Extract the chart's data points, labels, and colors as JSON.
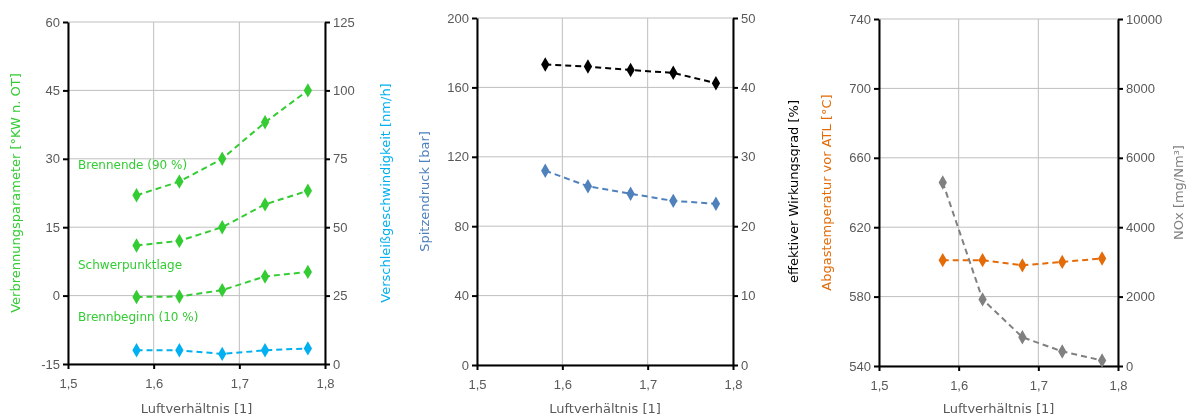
{
  "chart_data": [
    {
      "type": "line",
      "xlabel": "Luftverhältnis [1]",
      "ylabel": "Verbrennungsparameter [°KW n. OT]",
      "y2label": "Verschleißgeschwindigkeit [nm/h]",
      "x": [
        1.58,
        1.63,
        1.68,
        1.73,
        1.78
      ],
      "xlim": [
        1.5,
        1.8
      ],
      "xticks": [
        {
          "value": 1.5,
          "label": "1,5"
        },
        {
          "value": 1.6,
          "label": "1,6"
        },
        {
          "value": 1.7,
          "label": "1,7"
        },
        {
          "value": 1.8,
          "label": "1,8"
        }
      ],
      "ylim": [
        -15,
        60
      ],
      "yticks": [
        -15,
        0,
        15,
        30,
        45,
        60
      ],
      "y2lim": [
        0,
        125
      ],
      "y2ticks": [
        0,
        25,
        50,
        75,
        100,
        125
      ],
      "grid": true,
      "marker": "diamond",
      "line_style": "dashed",
      "series": [
        {
          "name": "Brennende (90 %)",
          "color": "#33cc33",
          "values": [
            22,
            25,
            30,
            38,
            45
          ]
        },
        {
          "name": "Schwerpunktlage",
          "color": "#33cc33",
          "values": [
            11,
            12,
            15,
            20,
            23
          ]
        },
        {
          "name": "Brennbeginn (10 %)",
          "color": "#33cc33",
          "values": [
            -0.3,
            -0.2,
            1.2,
            4.2,
            5.2
          ]
        },
        {
          "color": "#00b0f0",
          "axis": "y2",
          "values": [
            5,
            5,
            3.7,
            5,
            5.7
          ]
        }
      ]
    },
    {
      "type": "line",
      "xlabel": "Luftverhältnis [1]",
      "ylabel": "Spitzendruck [bar]",
      "y2label": "effektiver Wirkungsgrad [%]",
      "x": [
        1.58,
        1.63,
        1.68,
        1.73,
        1.78
      ],
      "xlim": [
        1.5,
        1.8
      ],
      "xticks": [
        {
          "value": 1.5,
          "label": "1,5"
        },
        {
          "value": 1.6,
          "label": "1,6"
        },
        {
          "value": 1.7,
          "label": "1,7"
        },
        {
          "value": 1.8,
          "label": "1,8"
        }
      ],
      "ylim": [
        0,
        200
      ],
      "yticks": [
        0,
        40,
        80,
        120,
        160,
        200
      ],
      "y2lim": [
        0,
        50
      ],
      "y2ticks": [
        0,
        10,
        20,
        30,
        40,
        50
      ],
      "grid": true,
      "marker": "diamond",
      "line_style": "dashed",
      "series": [
        {
          "color": "#4f81bd",
          "values": [
            112,
            103,
            98.7,
            94.6,
            92.9
          ]
        },
        {
          "color": "#000000",
          "axis": "y2",
          "values": [
            43.3,
            43,
            42.5,
            42.1,
            40.6
          ]
        }
      ]
    },
    {
      "type": "line",
      "xlabel": "Luftverhältnis [1]",
      "ylabel": "Abgastemperatur vor ATL [°C]",
      "y2label": "NOx [mg/Nm³]",
      "x": [
        1.58,
        1.63,
        1.68,
        1.73,
        1.78
      ],
      "xlim": [
        1.5,
        1.8
      ],
      "xticks": [
        {
          "value": 1.5,
          "label": "1,5"
        },
        {
          "value": 1.6,
          "label": "1,6"
        },
        {
          "value": 1.7,
          "label": "1,7"
        },
        {
          "value": 1.8,
          "label": "1,8"
        }
      ],
      "ylim": [
        540,
        740
      ],
      "yticks": [
        540,
        580,
        620,
        660,
        700,
        740
      ],
      "y2lim": [
        0,
        10000
      ],
      "y2ticks": [
        0,
        2000,
        4000,
        6000,
        8000,
        10000
      ],
      "grid": true,
      "marker": "diamond",
      "line_style": "dashed",
      "series": [
        {
          "color": "#e36c09",
          "values": [
            601,
            601,
            598,
            600,
            602
          ]
        },
        {
          "color": "#808080",
          "axis": "y2",
          "values": [
            5290,
            1920,
            830,
            420,
            160
          ]
        }
      ]
    }
  ]
}
